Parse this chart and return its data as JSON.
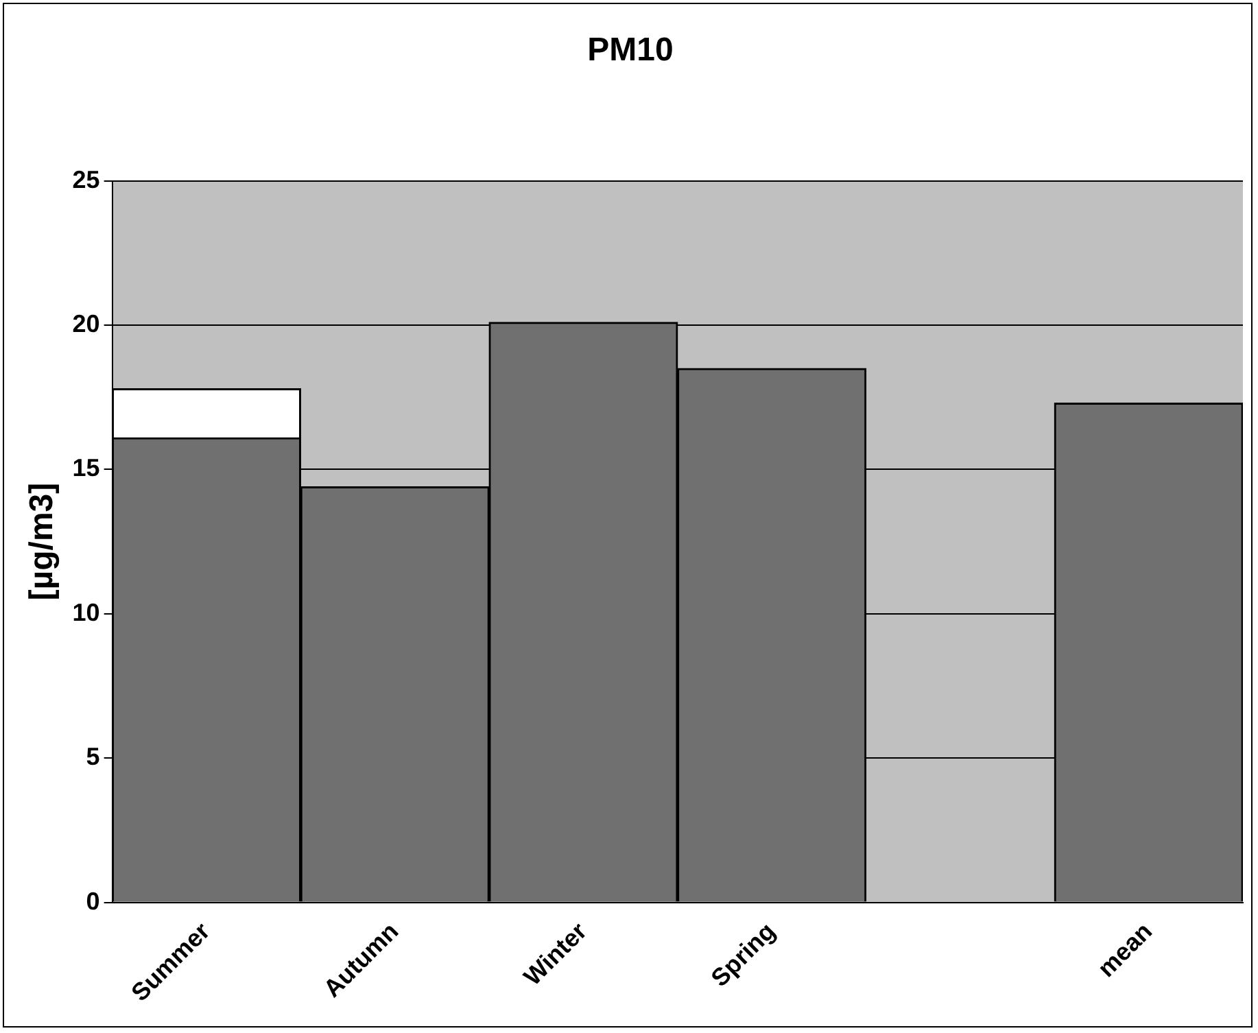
{
  "chart_data": {
    "type": "bar",
    "title": "PM10",
    "ylabel": "[µg/m3]",
    "stacked": true,
    "categories": [
      "Summer",
      "Autumn",
      "Winter",
      "Spring",
      null,
      "mean"
    ],
    "series": [
      {
        "color": "#707070",
        "values": [
          16.1,
          14.4,
          20.1,
          18.5,
          null,
          17.3
        ]
      },
      {
        "color": "#ffffff",
        "values": [
          1.7,
          null,
          null,
          null,
          null,
          null
        ]
      }
    ],
    "ylim": [
      0,
      25
    ],
    "yticks": [
      0,
      5,
      10,
      15,
      20,
      25
    ],
    "grid": "y",
    "legend": false
  }
}
